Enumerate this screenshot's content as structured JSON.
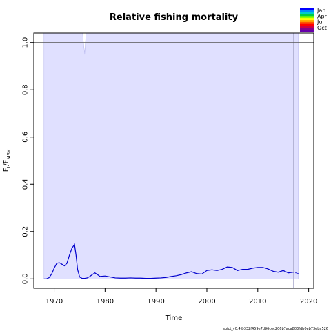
{
  "chart_data": {
    "type": "line",
    "title": "Relative fishing mortality",
    "xlabel": "Time",
    "ylabel": "F_t/F_MSY",
    "ylabel_main": "F",
    "ylabel_sub_t": "t",
    "ylabel_sub_msy": "MSY",
    "xlim": [
      1966,
      2021
    ],
    "ylim": [
      -0.04,
      1.04
    ],
    "x_ticks": [
      1970,
      1980,
      1990,
      2000,
      2010,
      2020
    ],
    "y_ticks": [
      0.0,
      0.2,
      0.4,
      0.6,
      0.8,
      1.0
    ],
    "x_tick_labels": [
      "1970",
      "1980",
      "1990",
      "2000",
      "2010",
      "2020"
    ],
    "y_tick_labels": [
      "0.0",
      "0.2",
      "0.4",
      "0.6",
      "0.8",
      "1.0"
    ],
    "reference_line": {
      "y": 1.0,
      "color": "#555555"
    },
    "confidence_band": {
      "x_start": 1968,
      "x_end": 2018,
      "lower": 0.0,
      "upper": 1.04,
      "dip_x": 1976,
      "dip_y": 0.95,
      "fill": "#e0e0ff"
    },
    "forecast_start": 2017,
    "series": [
      {
        "color": "#0000cc",
        "x": [
          1968,
          1968.5,
          1969,
          1969.5,
          1970,
          1970.5,
          1971,
          1971.5,
          1972,
          1972.5,
          1973,
          1973.5,
          1974,
          1974.3,
          1974.6,
          1975,
          1975.5,
          1976,
          1976.5,
          1977,
          1977.5,
          1978,
          1978.5,
          1979,
          1980,
          1981,
          1982,
          1983,
          1984,
          1985,
          1986,
          1987,
          1988,
          1989,
          1990,
          1991,
          1992,
          1993,
          1994,
          1995,
          1996,
          1997,
          1998,
          1999,
          2000,
          2001,
          2002,
          2003,
          2004,
          2005,
          2006,
          2007,
          2008,
          2009,
          2010,
          2011,
          2012,
          2013,
          2014,
          2015,
          2016,
          2017
        ],
        "y": [
          0.0,
          0.0,
          0.005,
          0.02,
          0.045,
          0.065,
          0.068,
          0.062,
          0.055,
          0.065,
          0.1,
          0.13,
          0.145,
          0.1,
          0.04,
          0.008,
          0.002,
          0.002,
          0.004,
          0.01,
          0.018,
          0.025,
          0.018,
          0.01,
          0.012,
          0.008,
          0.004,
          0.003,
          0.003,
          0.004,
          0.003,
          0.003,
          0.002,
          0.002,
          0.003,
          0.004,
          0.006,
          0.01,
          0.013,
          0.018,
          0.025,
          0.03,
          0.022,
          0.02,
          0.035,
          0.038,
          0.035,
          0.04,
          0.05,
          0.048,
          0.035,
          0.04,
          0.04,
          0.045,
          0.048,
          0.048,
          0.042,
          0.032,
          0.028,
          0.035,
          0.025,
          0.028
        ]
      }
    ],
    "forecast_series": {
      "color": "#0000cc",
      "x": [
        2017,
        2018
      ],
      "y": [
        0.028,
        0.022
      ]
    },
    "legend": {
      "position": "top-right",
      "entries": [
        "Jan",
        "Apr",
        "Jul",
        "Oct"
      ],
      "colors": [
        "#0000ff",
        "#0088ff",
        "#00cccc",
        "#00cc44",
        "#88ff00",
        "#ffff00",
        "#ffaa00",
        "#ff5500",
        "#ff0000",
        "#cc0044",
        "#880088",
        "#6600aa"
      ]
    },
    "footer": "spict_v0.4@332f459e7d96cec206b7aca803fdb0eb73eba526"
  }
}
